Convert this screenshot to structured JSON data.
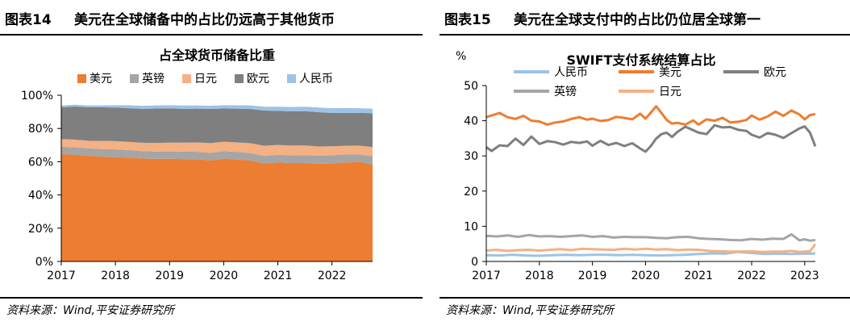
{
  "left": {
    "figure_number": "图表14",
    "figure_title": "美元在全球储备中的占比仍远高于其他货币",
    "source": "资料来源：Wind,平安证券研究所"
  },
  "right": {
    "figure_number": "图表15",
    "figure_title": "美元在全球支付中的占比仍位居全球第一",
    "source": "资料来源：Wind,平安证券研究所"
  },
  "chart_data": [
    {
      "type": "area",
      "title": "占全球货币储备比重",
      "xlabel": "",
      "ylabel": "",
      "ylim": [
        0,
        100
      ],
      "yticks": [
        "0%",
        "20%",
        "40%",
        "60%",
        "80%",
        "100%"
      ],
      "xticks": [
        "2017",
        "2018",
        "2019",
        "2020",
        "2021",
        "2022"
      ],
      "stacked": true,
      "legend_position": "top",
      "grid": false,
      "x": [
        "2017Q1",
        "2017Q2",
        "2017Q3",
        "2017Q4",
        "2018Q1",
        "2018Q2",
        "2018Q3",
        "2018Q4",
        "2019Q1",
        "2019Q2",
        "2019Q3",
        "2019Q4",
        "2020Q1",
        "2020Q2",
        "2020Q3",
        "2020Q4",
        "2021Q1",
        "2021Q2",
        "2021Q3",
        "2021Q4",
        "2022Q1",
        "2022Q2",
        "2022Q3",
        "2022Q4"
      ],
      "series": [
        {
          "name": "美元",
          "color": "#ED7D31",
          "values": [
            64.7,
            64.2,
            63.6,
            63.1,
            62.7,
            62.5,
            61.9,
            61.7,
            61.8,
            61.6,
            61.5,
            60.7,
            61.9,
            61.3,
            60.7,
            58.9,
            59.5,
            59.2,
            59.2,
            58.8,
            58.9,
            59.5,
            59.8,
            58.4
          ]
        },
        {
          "name": "英镑",
          "color": "#A5A5A5",
          "values": [
            4.3,
            4.5,
            4.5,
            4.5,
            4.7,
            4.5,
            4.5,
            4.4,
            4.4,
            4.5,
            4.5,
            4.6,
            4.4,
            4.6,
            4.5,
            4.7,
            4.7,
            4.7,
            4.8,
            4.8,
            5.0,
            4.9,
            4.6,
            4.9
          ]
        },
        {
          "name": "日元",
          "color": "#F4B183",
          "values": [
            4.6,
            4.6,
            4.5,
            4.9,
            5.0,
            4.9,
            5.0,
            5.2,
            5.3,
            5.4,
            5.6,
            5.9,
            5.7,
            5.7,
            5.9,
            6.0,
            5.9,
            5.8,
            5.8,
            5.6,
            5.4,
            5.2,
            5.3,
            5.5
          ]
        },
        {
          "name": "欧元",
          "color": "#7F7F7F",
          "values": [
            19.1,
            19.9,
            20.2,
            20.2,
            20.2,
            20.3,
            20.4,
            20.7,
            20.6,
            20.3,
            20.3,
            20.6,
            20.0,
            20.3,
            20.6,
            21.2,
            20.5,
            20.6,
            20.6,
            20.6,
            20.0,
            19.8,
            19.7,
            20.4
          ]
        },
        {
          "name": "人民币",
          "color": "#9DC3E6",
          "values": [
            1.1,
            1.1,
            1.1,
            1.2,
            1.4,
            1.8,
            1.8,
            1.9,
            1.9,
            2.0,
            2.0,
            1.9,
            2.0,
            2.1,
            2.2,
            2.3,
            2.5,
            2.6,
            2.7,
            2.8,
            2.9,
            2.9,
            2.8,
            2.7
          ]
        }
      ]
    },
    {
      "type": "line",
      "title": "SWIFT支付系统结算占比",
      "xlabel": "",
      "ylabel": "%",
      "ylim": [
        0,
        50
      ],
      "yticks": [
        "0",
        "10",
        "20",
        "30",
        "40",
        "50"
      ],
      "xticks": [
        "2017",
        "2018",
        "2019",
        "2020",
        "2021",
        "2022",
        "2023"
      ],
      "xrange": [
        2017,
        2023.2
      ],
      "legend_position": "top",
      "grid": false,
      "series": [
        {
          "name": "人民币",
          "color": "#9DC3E6",
          "x": [
            2017.0,
            2017.25,
            2017.5,
            2017.75,
            2018.0,
            2018.25,
            2018.5,
            2018.75,
            2019.0,
            2019.25,
            2019.5,
            2019.75,
            2020.0,
            2020.25,
            2020.5,
            2020.75,
            2021.0,
            2021.25,
            2021.5,
            2021.75,
            2022.0,
            2022.25,
            2022.5,
            2022.75,
            2023.0,
            2023.1,
            2023.2
          ],
          "values": [
            1.8,
            1.7,
            1.9,
            1.7,
            1.6,
            1.8,
            1.9,
            1.8,
            1.9,
            1.9,
            1.8,
            1.9,
            1.8,
            1.7,
            1.8,
            1.9,
            2.1,
            2.3,
            2.2,
            2.7,
            2.4,
            2.1,
            2.2,
            2.1,
            2.2,
            2.2,
            2.3
          ]
        },
        {
          "name": "美元",
          "color": "#ED7D31",
          "x": [
            2017.0,
            2017.1,
            2017.25,
            2017.4,
            2017.55,
            2017.7,
            2017.85,
            2018.0,
            2018.15,
            2018.3,
            2018.45,
            2018.6,
            2018.75,
            2018.9,
            2019.0,
            2019.15,
            2019.3,
            2019.45,
            2019.6,
            2019.75,
            2019.9,
            2020.0,
            2020.1,
            2020.2,
            2020.3,
            2020.4,
            2020.5,
            2020.6,
            2020.75,
            2020.9,
            2021.0,
            2021.15,
            2021.3,
            2021.45,
            2021.6,
            2021.75,
            2021.9,
            2022.0,
            2022.15,
            2022.3,
            2022.45,
            2022.6,
            2022.75,
            2022.9,
            2023.0,
            2023.1,
            2023.2
          ],
          "values": [
            41.0,
            41.5,
            42.2,
            41.0,
            40.5,
            41.4,
            40.0,
            39.8,
            38.9,
            39.5,
            39.8,
            40.5,
            41.0,
            40.3,
            40.6,
            39.9,
            40.2,
            41.1,
            40.8,
            40.4,
            42.0,
            40.6,
            42.3,
            44.1,
            42.2,
            40.2,
            39.2,
            39.4,
            38.9,
            40.1,
            38.9,
            40.4,
            40.0,
            40.8,
            39.5,
            39.7,
            40.2,
            41.5,
            40.3,
            41.2,
            42.6,
            41.4,
            42.9,
            41.8,
            40.4,
            41.6,
            41.9
          ]
        },
        {
          "name": "欧元",
          "color": "#7F7F7F",
          "x": [
            2017.0,
            2017.1,
            2017.25,
            2017.4,
            2017.55,
            2017.7,
            2017.85,
            2018.0,
            2018.15,
            2018.3,
            2018.45,
            2018.6,
            2018.75,
            2018.9,
            2019.0,
            2019.15,
            2019.3,
            2019.45,
            2019.6,
            2019.75,
            2019.9,
            2020.0,
            2020.1,
            2020.2,
            2020.3,
            2020.4,
            2020.5,
            2020.6,
            2020.75,
            2020.9,
            2021.0,
            2021.15,
            2021.3,
            2021.45,
            2021.6,
            2021.75,
            2021.9,
            2022.0,
            2022.15,
            2022.3,
            2022.45,
            2022.6,
            2022.75,
            2022.9,
            2023.0,
            2023.1,
            2023.2
          ],
          "values": [
            32.5,
            31.4,
            33.0,
            32.8,
            34.9,
            33.1,
            35.5,
            33.4,
            34.2,
            33.9,
            33.2,
            34.0,
            33.7,
            34.1,
            32.9,
            34.3,
            33.1,
            33.7,
            32.8,
            33.6,
            32.1,
            31.2,
            32.8,
            34.9,
            36.2,
            36.6,
            35.4,
            36.8,
            38.3,
            37.3,
            36.6,
            36.2,
            38.7,
            38.1,
            38.2,
            37.4,
            37.1,
            36.0,
            35.2,
            36.5,
            36.0,
            35.1,
            36.5,
            37.8,
            38.4,
            36.6,
            32.7
          ]
        },
        {
          "name": "英镑",
          "color": "#A5A5A5",
          "x": [
            2017.0,
            2017.2,
            2017.4,
            2017.6,
            2017.8,
            2018.0,
            2018.2,
            2018.4,
            2018.6,
            2018.8,
            2019.0,
            2019.2,
            2019.4,
            2019.6,
            2019.8,
            2020.0,
            2020.2,
            2020.4,
            2020.6,
            2020.8,
            2021.0,
            2021.2,
            2021.4,
            2021.6,
            2021.8,
            2022.0,
            2022.2,
            2022.4,
            2022.6,
            2022.75,
            2022.9,
            2023.0,
            2023.1,
            2023.2
          ],
          "values": [
            7.3,
            7.1,
            7.4,
            7.0,
            7.5,
            7.1,
            7.2,
            7.0,
            7.2,
            7.4,
            7.0,
            7.2,
            6.8,
            7.0,
            6.9,
            6.9,
            6.7,
            6.6,
            6.9,
            7.0,
            6.6,
            6.4,
            6.3,
            6.1,
            6.0,
            6.4,
            6.2,
            6.5,
            6.4,
            7.7,
            6.0,
            6.3,
            5.9,
            6.1
          ]
        },
        {
          "name": "日元",
          "color": "#F4B183",
          "x": [
            2017.0,
            2017.2,
            2017.4,
            2017.6,
            2017.8,
            2018.0,
            2018.2,
            2018.4,
            2018.6,
            2018.8,
            2019.0,
            2019.2,
            2019.4,
            2019.6,
            2019.8,
            2020.0,
            2020.2,
            2020.4,
            2020.6,
            2020.8,
            2021.0,
            2021.2,
            2021.4,
            2021.6,
            2021.8,
            2022.0,
            2022.2,
            2022.4,
            2022.6,
            2022.75,
            2022.9,
            2023.0,
            2023.1,
            2023.2
          ],
          "values": [
            3.1,
            3.3,
            3.0,
            3.2,
            3.3,
            3.1,
            3.3,
            3.5,
            3.2,
            3.6,
            3.5,
            3.4,
            3.3,
            3.6,
            3.4,
            3.6,
            3.4,
            3.5,
            3.2,
            3.4,
            3.3,
            3.0,
            2.9,
            2.8,
            2.8,
            2.9,
            2.7,
            2.8,
            2.8,
            3.0,
            2.7,
            2.8,
            2.9,
            4.9
          ]
        }
      ]
    }
  ]
}
